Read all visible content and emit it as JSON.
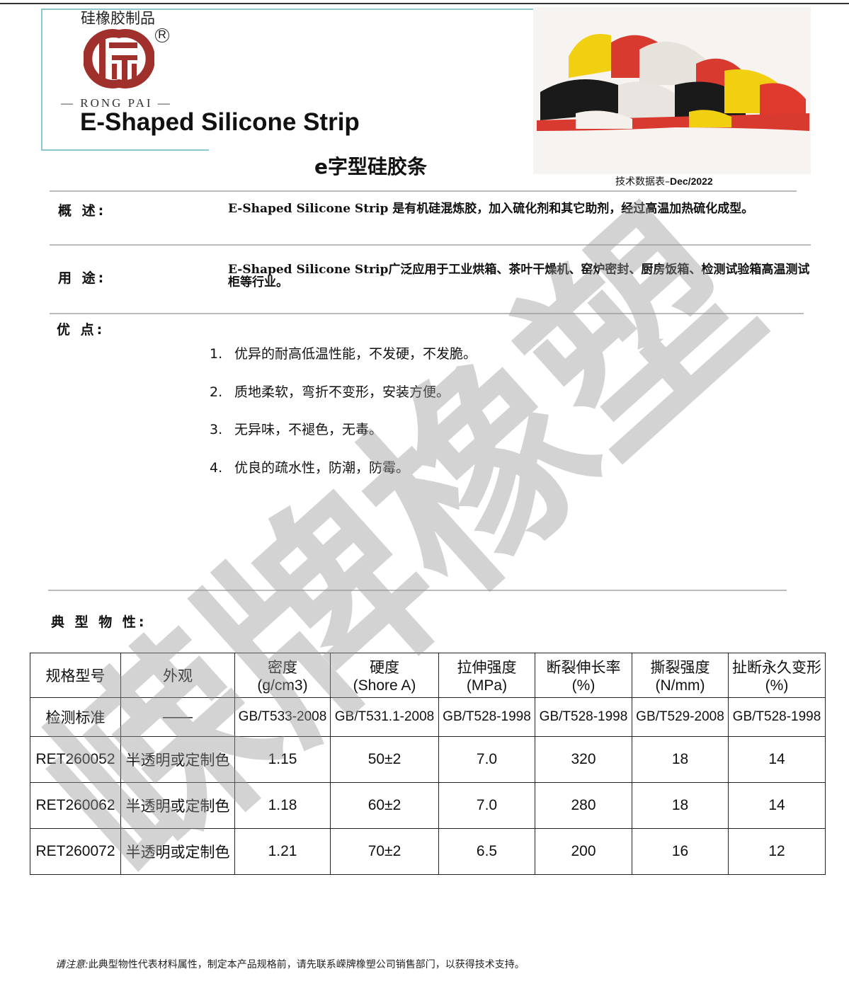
{
  "header": {
    "brand_cn": "硅橡胶制品",
    "logo_text": "RONG PAI",
    "registered_mark": "R",
    "title_en": "E-Shaped Silicone Strip",
    "title_cn": "e字型硅胶条",
    "date_prefix": "技术数据表–",
    "date": "Dec/2022"
  },
  "overview": {
    "label": "概 述:",
    "text": "E-Shaped Silicone Strip 是有机硅混炼胶，加入硫化剂和其它助剂，经过高温加热硫化成型。"
  },
  "usage": {
    "label": "用 途:",
    "text": "E-Shaped Silicone Strip广泛应用于工业烘箱、茶叶干燥机、窑炉密封、厨房饭箱、检测试验箱高温测试柜等行业。"
  },
  "advantages": {
    "label": "优 点:",
    "items": [
      {
        "num": "1.",
        "text": "优异的耐高低温性能，不发硬，不发脆。"
      },
      {
        "num": "2.",
        "text": "质地柔软，弯折不变形，安装方便。"
      },
      {
        "num": "3.",
        "text": "无异味，不褪色，无毒。"
      },
      {
        "num": "4.",
        "text": "优良的疏水性，防潮，防霉。"
      }
    ]
  },
  "properties": {
    "label": "典 型 物 性:",
    "headers": [
      [
        "规格型号",
        ""
      ],
      [
        "外观",
        ""
      ],
      [
        "密度",
        "(g/cm3)"
      ],
      [
        "硬度",
        "(Shore A)"
      ],
      [
        "拉伸强度",
        "(MPa)"
      ],
      [
        "断裂伸长率",
        "(%)"
      ],
      [
        "撕裂强度",
        "(N/mm)"
      ],
      [
        "扯断永久变形",
        "(%)"
      ]
    ],
    "standards": [
      "检测标准",
      "——",
      "GB/T533-2008",
      "GB/T531.1-2008",
      "GB/T528-1998",
      "GB/T528-1998",
      "GB/T529-2008",
      "GB/T528-1998"
    ],
    "rows": [
      [
        "RET260052",
        "半透明或定制色",
        "1.15",
        "50±2",
        "7.0",
        "320",
        "18",
        "14"
      ],
      [
        "RET260062",
        "半透明或定制色",
        "1.18",
        "60±2",
        "7.0",
        "280",
        "18",
        "14"
      ],
      [
        "RET260072",
        "半透明或定制色",
        "1.21",
        "70±2",
        "6.5",
        "200",
        "16",
        "12"
      ]
    ]
  },
  "footer": {
    "label": "请注意:",
    "text": "此典型物性代表材料属性，制定本产品规格前，请先联系嵘牌橡塑公司销售部门，以获得技术支持。"
  },
  "watermark": "嵘牌橡塑",
  "colors": {
    "logo": "#a0302b",
    "frame": "#8cc8d0",
    "watermark": "#969696"
  }
}
